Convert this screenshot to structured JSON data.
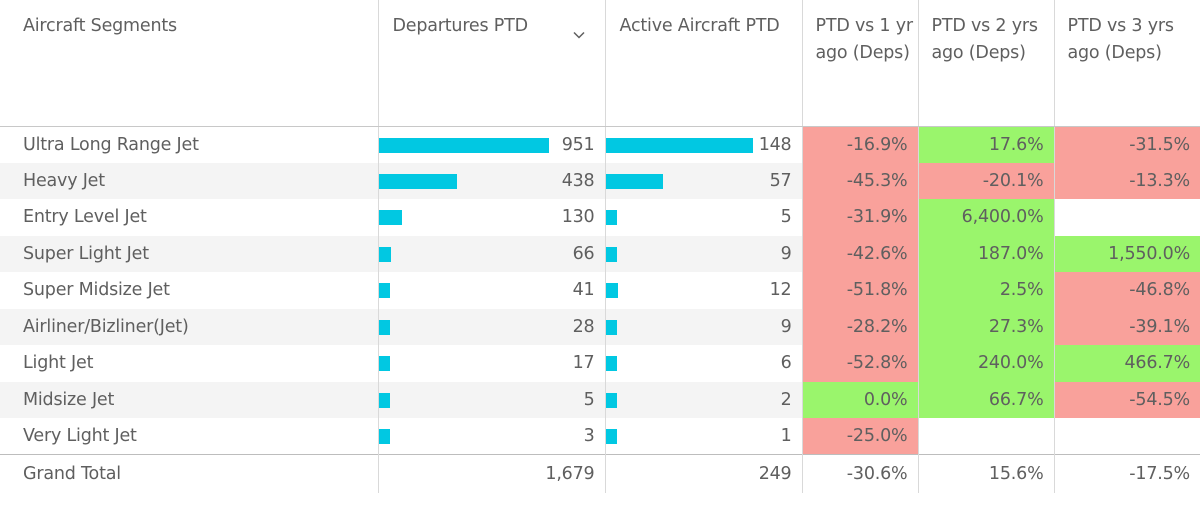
{
  "headers": {
    "segment": "Aircraft Segments",
    "departures": "Departures PTD",
    "active": "Active Aircraft PTD",
    "vs1": "PTD vs 1 yr ago (Deps)",
    "vs2": "PTD vs 2 yrs ago (Deps)",
    "vs3": "PTD vs 3 yrs ago (Deps)"
  },
  "sort_icon": "chevron-down-icon",
  "colors": {
    "bar": "#01c8e2",
    "negative": "#f9a19b",
    "positive": "#9af56c"
  },
  "rows": [
    {
      "segment": "Ultra Long Range Jet",
      "departures": "951",
      "departures_value": 951,
      "active": "148",
      "active_value": 148,
      "vs1": "-16.9%",
      "vs2": "17.6%",
      "vs3": "-31.5%"
    },
    {
      "segment": "Heavy Jet",
      "departures": "438",
      "departures_value": 438,
      "active": "57",
      "active_value": 57,
      "vs1": "-45.3%",
      "vs2": "-20.1%",
      "vs3": "-13.3%"
    },
    {
      "segment": "Entry Level Jet",
      "departures": "130",
      "departures_value": 130,
      "active": "5",
      "active_value": 5,
      "vs1": "-31.9%",
      "vs2": "6,400.0%",
      "vs3": ""
    },
    {
      "segment": "Super Light Jet",
      "departures": "66",
      "departures_value": 66,
      "active": "9",
      "active_value": 9,
      "vs1": "-42.6%",
      "vs2": "187.0%",
      "vs3": "1,550.0%"
    },
    {
      "segment": "Super Midsize Jet",
      "departures": "41",
      "departures_value": 41,
      "active": "12",
      "active_value": 12,
      "vs1": "-51.8%",
      "vs2": "2.5%",
      "vs3": "-46.8%"
    },
    {
      "segment": "Airliner/Bizliner(Jet)",
      "departures": "28",
      "departures_value": 28,
      "active": "9",
      "active_value": 9,
      "vs1": "-28.2%",
      "vs2": "27.3%",
      "vs3": "-39.1%"
    },
    {
      "segment": "Light Jet",
      "departures": "17",
      "departures_value": 17,
      "active": "6",
      "active_value": 6,
      "vs1": "-52.8%",
      "vs2": "240.0%",
      "vs3": "466.7%"
    },
    {
      "segment": "Midsize Jet",
      "departures": "5",
      "departures_value": 5,
      "active": "2",
      "active_value": 2,
      "vs1": "0.0%",
      "vs2": "66.7%",
      "vs3": "-54.5%"
    },
    {
      "segment": "Very Light Jet",
      "departures": "3",
      "departures_value": 3,
      "active": "1",
      "active_value": 1,
      "vs1": "-25.0%",
      "vs2": "",
      "vs3": ""
    }
  ],
  "total": {
    "segment": "Grand Total",
    "departures": "1,679",
    "active": "249",
    "vs1": "-30.6%",
    "vs2": "15.6%",
    "vs3": "-17.5%"
  }
}
